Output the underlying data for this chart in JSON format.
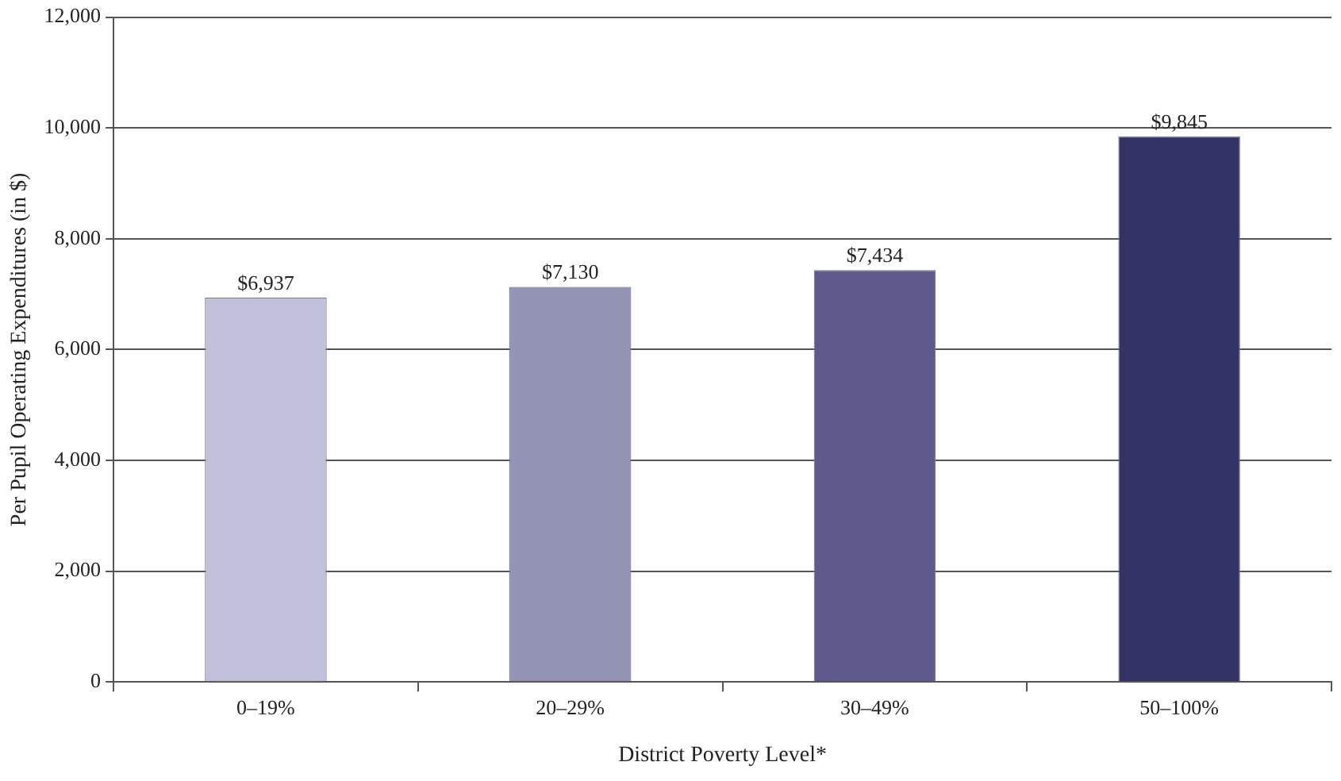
{
  "chart_data": {
    "type": "bar",
    "xlabel": "District Poverty Level*",
    "ylabel": "Per Pupil Operating Expenditures (in $)",
    "categories": [
      "0–19%",
      "20–29%",
      "30–49%",
      "50–100%"
    ],
    "values": [
      6937,
      7130,
      7434,
      9845
    ],
    "value_labels": [
      "$6,937",
      "$7,130",
      "$7,434",
      "$9,845"
    ],
    "colors": [
      "#c0c0da",
      "#9494b6",
      "#5e5a8c",
      "#323264"
    ],
    "ylim": [
      0,
      12000
    ],
    "yticks": [
      {
        "value": 0,
        "label": "0"
      },
      {
        "value": 2000,
        "label": "2,000"
      },
      {
        "value": 4000,
        "label": "4,000"
      },
      {
        "value": 6000,
        "label": "6,000"
      },
      {
        "value": 8000,
        "label": "8,000"
      },
      {
        "value": 10000,
        "label": "10,000"
      },
      {
        "value": 12000,
        "label": "12,000"
      }
    ],
    "grid": "y",
    "legend": false
  }
}
